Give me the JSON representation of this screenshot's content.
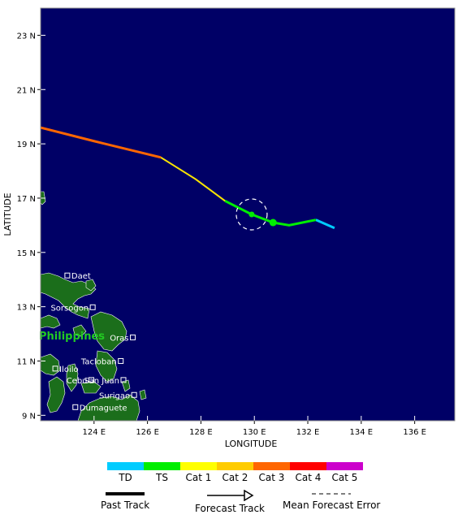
{
  "map": {
    "lon_range": [
      122.0,
      137.5
    ],
    "lat_range": [
      8.8,
      24.0
    ],
    "ocean_color": "#000066",
    "land_color": "#1b6e1b",
    "lon_ticks": [
      "124 E",
      "126 E",
      "128 E",
      "130 E",
      "132 E",
      "134 E",
      "136 E"
    ],
    "lat_ticks": [
      "9 N",
      "11 N",
      "13 N",
      "15 N",
      "17 N",
      "19 N",
      "21 N",
      "23 N"
    ],
    "xlabel": "LONGITUDE",
    "ylabel": "LATITUDE",
    "country_label": "Philippines",
    "cities": [
      {
        "name": "Daet"
      },
      {
        "name": "Sorsogon"
      },
      {
        "name": "Oras"
      },
      {
        "name": "Tacloban"
      },
      {
        "name": "Iloilo"
      },
      {
        "name": "Cebu"
      },
      {
        "name": "San Juan"
      },
      {
        "name": "Surigao"
      },
      {
        "name": "Dumaguete"
      }
    ]
  },
  "chart_data": {
    "type": "line",
    "title": "",
    "xlabel": "LONGITUDE",
    "ylabel": "LATITUDE",
    "xlim": [
      122.0,
      137.5
    ],
    "ylim": [
      8.8,
      24.0
    ],
    "series": [
      {
        "category": "TD",
        "color": "#00ccff",
        "lon": [
          133.0,
          132.3
        ],
        "lat": [
          15.9,
          16.2
        ]
      },
      {
        "category": "TS",
        "color": "#00ee00",
        "lon": [
          132.3,
          131.3,
          130.7,
          129.9,
          128.9
        ],
        "lat": [
          16.2,
          16.0,
          16.1,
          16.4,
          16.9
        ]
      },
      {
        "category": "Cat 1",
        "color": "#ffff00",
        "lon": [
          128.9,
          127.8,
          126.5
        ],
        "lat": [
          16.9,
          17.7,
          18.5
        ]
      },
      {
        "category": "Cat 2",
        "color": "#ffcc00",
        "lon": [
          128.9,
          127.8,
          126.5
        ],
        "lat": [
          16.9,
          17.7,
          18.5
        ]
      },
      {
        "category": "Cat 3",
        "color": "#ff6600",
        "lon": [
          126.5,
          124.0,
          122.0
        ],
        "lat": [
          18.5,
          19.1,
          19.6
        ]
      }
    ],
    "current_position": {
      "lon": 129.9,
      "lat": 16.4
    },
    "forecast_points": [
      {
        "lon": 130.7,
        "lat": 16.1
      }
    ],
    "error_circle_center": {
      "lon": 129.9,
      "lat": 16.4
    }
  },
  "legend": {
    "scale": [
      {
        "label": "TD",
        "color": "#00ccff"
      },
      {
        "label": "TS",
        "color": "#00ee00"
      },
      {
        "label": "Cat 1",
        "color": "#ffff00"
      },
      {
        "label": "Cat 2",
        "color": "#ffcc00"
      },
      {
        "label": "Cat 3",
        "color": "#ff6600"
      },
      {
        "label": "Cat 4",
        "color": "#ff0000"
      },
      {
        "label": "Cat 5",
        "color": "#cc00cc"
      }
    ],
    "past_track": "Past Track",
    "forecast_track": "Forecast Track",
    "mean_error": "Mean Forecast Error"
  }
}
